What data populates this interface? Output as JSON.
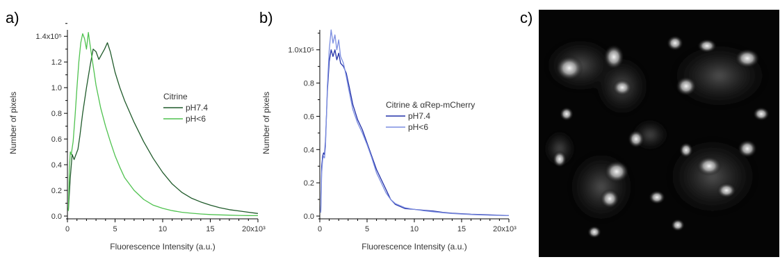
{
  "panels": {
    "a": "a)",
    "b": "b)",
    "c": "c)"
  },
  "chart_data": [
    {
      "type": "line",
      "panel": "a",
      "xlabel": "Fluorescence Intensity (a.u.)",
      "ylabel": "Number of pixels",
      "x_ticks": [
        "0",
        "5",
        "10",
        "15",
        "20x10³"
      ],
      "y_ticks": [
        "0.0",
        "0.2",
        "0.4",
        "0.6",
        "0.8",
        "1.0",
        "1.2",
        "1.4x10⁵"
      ],
      "xlim": [
        0,
        20000
      ],
      "ylim": [
        0,
        145000
      ],
      "legend_title": "Citrine",
      "legend_position": "right",
      "series": [
        {
          "name": "pH7.4",
          "color": "#1f5a2a",
          "x": [
            100,
            300,
            500,
            700,
            900,
            1100,
            1300,
            1600,
            2000,
            2400,
            2700,
            3000,
            3300,
            3600,
            3900,
            4200,
            4500,
            5000,
            5500,
            6000,
            7000,
            8000,
            9000,
            10000,
            11000,
            12000,
            13000,
            14000,
            15000,
            16000,
            17000,
            18000,
            19000,
            20000
          ],
          "y": [
            5000,
            30000,
            48000,
            44000,
            48000,
            52000,
            62000,
            80000,
            100000,
            118000,
            130000,
            128000,
            122000,
            126000,
            130000,
            135000,
            128000,
            112000,
            100000,
            90000,
            73000,
            58000,
            45000,
            34000,
            25000,
            18500,
            14000,
            11000,
            8500,
            6500,
            5000,
            4000,
            3000,
            2000
          ]
        },
        {
          "name": "pH<6",
          "color": "#4fc24f",
          "x": [
            100,
            200,
            300,
            400,
            600,
            800,
            1000,
            1200,
            1400,
            1600,
            1800,
            2000,
            2200,
            2400,
            2600,
            2800,
            3000,
            3500,
            4000,
            4500,
            5000,
            5500,
            6000,
            7000,
            8000,
            9000,
            10000,
            11000,
            12000,
            13000,
            14000,
            15000,
            16000,
            17000,
            18000,
            19000,
            20000
          ],
          "y": [
            4000,
            35000,
            50000,
            48000,
            58000,
            78000,
            100000,
            120000,
            135000,
            142000,
            138000,
            130000,
            143000,
            132000,
            122000,
            112000,
            102000,
            84000,
            70000,
            58000,
            47000,
            38000,
            30000,
            20000,
            13000,
            8500,
            6000,
            4200,
            3000,
            2200,
            1600,
            1200,
            900,
            700,
            500,
            400,
            300
          ]
        }
      ]
    },
    {
      "type": "line",
      "panel": "b",
      "xlabel": "Fluorescence Intensity (a.u.)",
      "ylabel": "Number of pixels",
      "x_ticks": [
        "0",
        "5",
        "10",
        "15",
        "20x10³"
      ],
      "y_ticks": [
        "0.0",
        "0.2",
        "0.4",
        "0.6",
        "0.8",
        "1.0x10⁵"
      ],
      "xlim": [
        0,
        20000
      ],
      "ylim": [
        0,
        112000
      ],
      "legend_title": "Citrine & αRep-mCherry",
      "legend_position": "right",
      "series": [
        {
          "name": "pH7.4",
          "color": "#2230a8",
          "x": [
            100,
            200,
            300,
            400,
            500,
            600,
            800,
            1000,
            1200,
            1400,
            1600,
            1800,
            2000,
            2200,
            2500,
            2800,
            3100,
            3500,
            4000,
            4500,
            5000,
            5500,
            6000,
            6500,
            7000,
            7500,
            8000,
            9000,
            10000,
            11000,
            12000,
            13000,
            14000,
            15000,
            16000,
            17000,
            18000,
            19000,
            20000
          ],
          "y": [
            3000,
            30000,
            36000,
            38000,
            37000,
            45000,
            75000,
            93000,
            100000,
            96000,
            100000,
            94000,
            98000,
            92000,
            90000,
            86000,
            78000,
            67000,
            58000,
            52000,
            44000,
            36000,
            28000,
            22000,
            16000,
            10000,
            7000,
            4500,
            4000,
            3500,
            3000,
            2200,
            1700,
            1400,
            1100,
            900,
            700,
            500,
            300
          ]
        },
        {
          "name": "pH<6",
          "color": "#7b8de0",
          "x": [
            100,
            200,
            300,
            400,
            500,
            600,
            800,
            1000,
            1200,
            1400,
            1600,
            1800,
            2000,
            2200,
            2500,
            2800,
            3100,
            3500,
            4000,
            4500,
            5000,
            5500,
            6000,
            6500,
            7000,
            7500,
            8000,
            9000,
            10000,
            11000,
            12000,
            13000,
            14000,
            15000,
            16000,
            17000,
            18000,
            19000,
            20000
          ],
          "y": [
            2000,
            26000,
            34000,
            36000,
            35000,
            42000,
            78000,
            100000,
            112000,
            104000,
            109000,
            100000,
            106000,
            96000,
            92000,
            84000,
            75000,
            64000,
            56000,
            50000,
            43000,
            35000,
            26000,
            20000,
            14000,
            10000,
            7500,
            5000,
            4000,
            3200,
            2600,
            2000,
            1500,
            1200,
            900,
            700,
            500,
            400,
            300
          ]
        }
      ]
    }
  ]
}
